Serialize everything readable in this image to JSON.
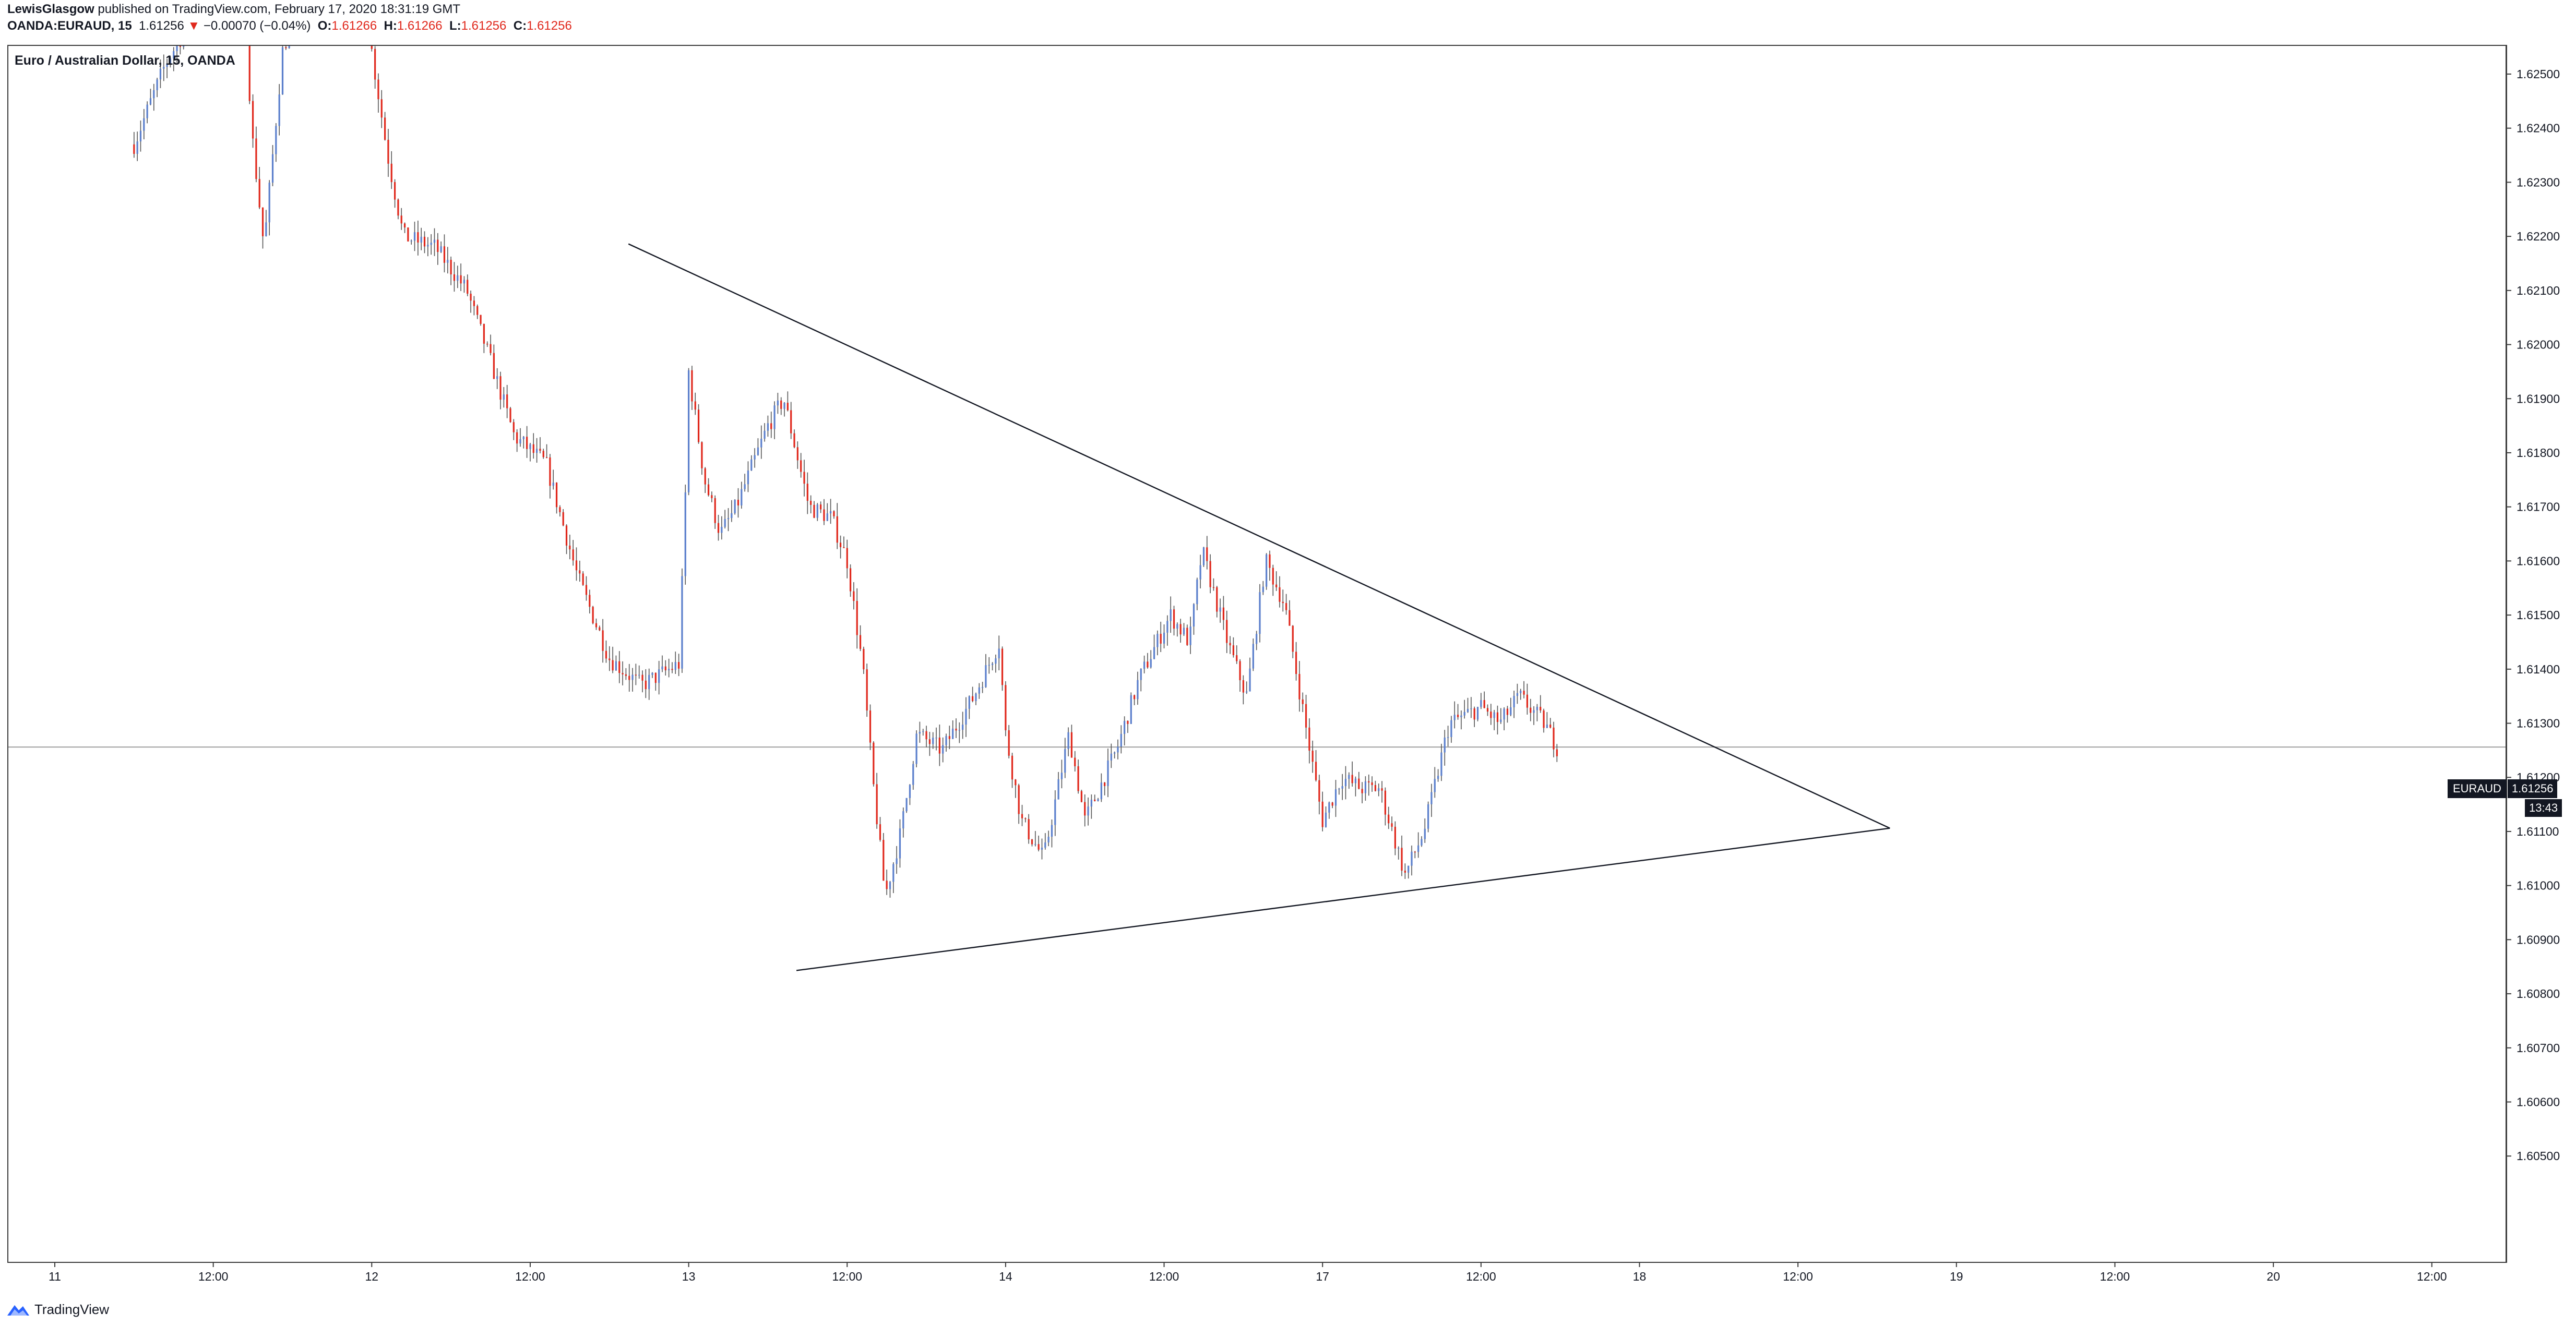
{
  "header": {
    "author": "LewisGlasgow",
    "published_text": "published on TradingView.com, February 17, 2020 18:31:19 GMT",
    "symbol_interval": "OANDA:EURAUD, 15",
    "last_price": "1.61256",
    "change_arrow": "▼",
    "change_text": "−0.00070 (−0.04%)",
    "o_label": "O:",
    "o_value": "1.61266",
    "h_label": "H:",
    "h_value": "1.61266",
    "l_label": "L:",
    "l_value": "1.61256",
    "c_label": "C:",
    "c_value": "1.61256"
  },
  "chart_title": "Euro / Australian Dollar, 15, OANDA",
  "price_label": {
    "symbol": "EURAUD",
    "value": "1.61256",
    "countdown": "13:43"
  },
  "footer": {
    "brand": "TradingView",
    "logo_icon": "tradingview-logo-icon"
  },
  "colors": {
    "up": "#5b7fcc",
    "down": "#e0281c",
    "wick": "#555555",
    "axis_text": "#131722"
  },
  "chart_data": {
    "type": "candlestick",
    "title": "Euro / Australian Dollar, 15, OANDA",
    "ylim": [
      1.6045,
      1.6254
    ],
    "y_ticks": [
      "1.62500",
      "1.62400",
      "1.62300",
      "1.62200",
      "1.62100",
      "1.62000",
      "1.61900",
      "1.61800",
      "1.61700",
      "1.61600",
      "1.61500",
      "1.61400",
      "1.61300",
      "1.61200",
      "1.61100",
      "1.61000",
      "1.60900",
      "1.60800",
      "1.60700",
      "1.60600",
      "1.60500"
    ],
    "x_ticks": [
      "11",
      "12:00",
      "12",
      "12:00",
      "13",
      "12:00",
      "14",
      "12:00",
      "17",
      "12:00",
      "18",
      "12:00",
      "19",
      "12:00",
      "20",
      "12:00"
    ],
    "current_price": 1.61256,
    "price_path": [
      {
        "day": 0.25,
        "price": 1.6237
      },
      {
        "day": 0.35,
        "price": 1.6252
      },
      {
        "day": 0.45,
        "price": 1.6262
      },
      {
        "day": 0.6,
        "price": 1.6265
      },
      {
        "day": 0.62,
        "price": 1.624
      },
      {
        "day": 0.66,
        "price": 1.6218
      },
      {
        "day": 0.72,
        "price": 1.6255
      },
      {
        "day": 0.8,
        "price": 1.6265
      },
      {
        "day": 0.98,
        "price": 1.6262
      },
      {
        "day": 1.05,
        "price": 1.6235
      },
      {
        "day": 1.1,
        "price": 1.622
      },
      {
        "day": 1.2,
        "price": 1.6218
      },
      {
        "day": 1.3,
        "price": 1.621
      },
      {
        "day": 1.38,
        "price": 1.6196
      },
      {
        "day": 1.45,
        "price": 1.6183
      },
      {
        "day": 1.55,
        "price": 1.6178
      },
      {
        "day": 1.65,
        "price": 1.6157
      },
      {
        "day": 1.75,
        "price": 1.6142
      },
      {
        "day": 1.85,
        "price": 1.6137
      },
      {
        "day": 1.97,
        "price": 1.6141
      },
      {
        "day": 1.99,
        "price": 1.6173
      },
      {
        "day": 2.0,
        "price": 1.6195
      },
      {
        "day": 2.05,
        "price": 1.6175
      },
      {
        "day": 2.1,
        "price": 1.6165
      },
      {
        "day": 2.15,
        "price": 1.617
      },
      {
        "day": 2.25,
        "price": 1.6185
      },
      {
        "day": 2.3,
        "price": 1.619
      },
      {
        "day": 2.38,
        "price": 1.617
      },
      {
        "day": 2.45,
        "price": 1.6168
      },
      {
        "day": 2.5,
        "price": 1.616
      },
      {
        "day": 2.55,
        "price": 1.614
      },
      {
        "day": 2.58,
        "price": 1.612
      },
      {
        "day": 2.62,
        "price": 1.6098
      },
      {
        "day": 2.67,
        "price": 1.611
      },
      {
        "day": 2.72,
        "price": 1.6128
      },
      {
        "day": 2.8,
        "price": 1.6125
      },
      {
        "day": 2.9,
        "price": 1.6135
      },
      {
        "day": 2.98,
        "price": 1.6145
      },
      {
        "day": 3.0,
        "price": 1.6128
      },
      {
        "day": 3.05,
        "price": 1.6112
      },
      {
        "day": 3.12,
        "price": 1.6105
      },
      {
        "day": 3.2,
        "price": 1.6128
      },
      {
        "day": 3.25,
        "price": 1.6112
      },
      {
        "day": 3.35,
        "price": 1.6125
      },
      {
        "day": 3.42,
        "price": 1.6138
      },
      {
        "day": 3.52,
        "price": 1.615
      },
      {
        "day": 3.58,
        "price": 1.6145
      },
      {
        "day": 3.62,
        "price": 1.6162
      },
      {
        "day": 3.7,
        "price": 1.6145
      },
      {
        "day": 3.76,
        "price": 1.6135
      },
      {
        "day": 3.82,
        "price": 1.616
      },
      {
        "day": 3.88,
        "price": 1.6152
      },
      {
        "day": 3.96,
        "price": 1.6125
      },
      {
        "day": 4.0,
        "price": 1.6112
      },
      {
        "day": 4.06,
        "price": 1.612
      },
      {
        "day": 4.12,
        "price": 1.6118
      },
      {
        "day": 4.18,
        "price": 1.6118
      },
      {
        "day": 4.26,
        "price": 1.6102
      },
      {
        "day": 4.32,
        "price": 1.611
      },
      {
        "day": 4.4,
        "price": 1.613
      },
      {
        "day": 4.5,
        "price": 1.6133
      },
      {
        "day": 4.56,
        "price": 1.613
      },
      {
        "day": 4.62,
        "price": 1.6135
      },
      {
        "day": 4.7,
        "price": 1.613
      },
      {
        "day": 4.74,
        "price": 1.61256
      }
    ],
    "trendlines": [
      {
        "name": "upper-trendline",
        "from": {
          "day": 1.81,
          "price": 1.62186
        },
        "to": {
          "day": 5.79,
          "price": 1.61106
        }
      },
      {
        "name": "lower-trendline",
        "from": {
          "day": 2.34,
          "price": 1.60843
        },
        "to": {
          "day": 5.79,
          "price": 1.61106
        }
      }
    ]
  }
}
